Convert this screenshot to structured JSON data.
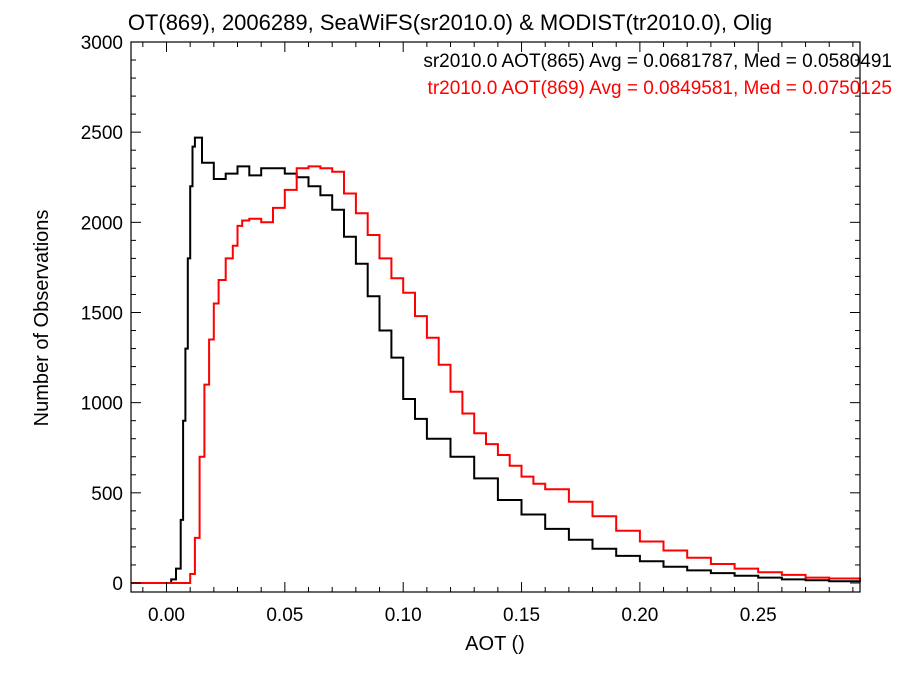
{
  "chart_data": {
    "type": "line",
    "title": "OT(869), 2006289, SeaWiFS(sr2010.0) & MODIST(tr2010.0), Olig",
    "xlabel": "AOT ()",
    "ylabel": "Number of Observations",
    "xlim": [
      -0.015,
      0.293
    ],
    "ylim": [
      -50,
      3000
    ],
    "x_ticks": [
      0.0,
      0.05,
      0.1,
      0.15,
      0.2,
      0.25
    ],
    "x_tick_labels": [
      "0.00",
      "0.05",
      "0.10",
      "0.15",
      "0.20",
      "0.25"
    ],
    "y_ticks": [
      0,
      500,
      1000,
      1500,
      2000,
      2500,
      3000
    ],
    "y_tick_labels": [
      "0",
      "500",
      "1000",
      "1500",
      "2000",
      "2500",
      "3000"
    ],
    "grid": false,
    "legend_position": "top-right",
    "series": [
      {
        "name": "sr2010.0 AOT(865) Avg = 0.0681787, Med = 0.0580491",
        "color": "#000000",
        "x": [
          -0.015,
          -0.005,
          0.0,
          0.002,
          0.004,
          0.006,
          0.007,
          0.008,
          0.009,
          0.01,
          0.011,
          0.012,
          0.015,
          0.02,
          0.025,
          0.03,
          0.035,
          0.04,
          0.045,
          0.05,
          0.055,
          0.06,
          0.065,
          0.07,
          0.075,
          0.08,
          0.085,
          0.09,
          0.095,
          0.1,
          0.105,
          0.11,
          0.12,
          0.13,
          0.14,
          0.15,
          0.16,
          0.17,
          0.18,
          0.19,
          0.2,
          0.21,
          0.22,
          0.23,
          0.24,
          0.25,
          0.26,
          0.27,
          0.28,
          0.293
        ],
        "values": [
          0,
          0,
          0,
          20,
          80,
          350,
          900,
          1300,
          1800,
          2200,
          2420,
          2470,
          2330,
          2240,
          2270,
          2310,
          2260,
          2300,
          2300,
          2270,
          2250,
          2200,
          2150,
          2070,
          1920,
          1770,
          1590,
          1400,
          1250,
          1020,
          910,
          800,
          700,
          580,
          460,
          380,
          300,
          240,
          190,
          150,
          120,
          90,
          70,
          55,
          40,
          30,
          20,
          15,
          10,
          5
        ]
      },
      {
        "name": "tr2010.0 AOT(869) Avg = 0.0849581, Med = 0.0750125",
        "color": "#ff0000",
        "x": [
          -0.015,
          0.0,
          0.008,
          0.01,
          0.012,
          0.014,
          0.016,
          0.018,
          0.02,
          0.022,
          0.025,
          0.028,
          0.03,
          0.032,
          0.035,
          0.04,
          0.045,
          0.05,
          0.055,
          0.06,
          0.065,
          0.07,
          0.075,
          0.08,
          0.085,
          0.09,
          0.095,
          0.1,
          0.105,
          0.11,
          0.115,
          0.12,
          0.125,
          0.13,
          0.135,
          0.14,
          0.145,
          0.15,
          0.155,
          0.16,
          0.17,
          0.18,
          0.19,
          0.2,
          0.21,
          0.22,
          0.23,
          0.24,
          0.25,
          0.26,
          0.27,
          0.28,
          0.293
        ],
        "values": [
          0,
          0,
          0,
          50,
          250,
          700,
          1100,
          1350,
          1550,
          1680,
          1800,
          1870,
          1980,
          2010,
          2020,
          2000,
          2080,
          2180,
          2300,
          2310,
          2300,
          2280,
          2160,
          2050,
          1930,
          1800,
          1690,
          1610,
          1480,
          1360,
          1210,
          1060,
          940,
          830,
          770,
          710,
          650,
          590,
          550,
          520,
          450,
          370,
          290,
          230,
          180,
          140,
          105,
          80,
          60,
          45,
          30,
          25,
          8
        ]
      }
    ]
  }
}
